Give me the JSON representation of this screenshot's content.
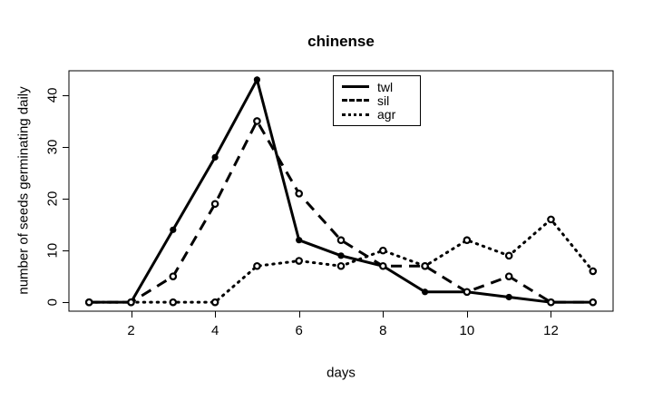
{
  "title": "chinense",
  "colors": {
    "foreground": "#000000",
    "background": "#ffffff"
  },
  "chart_data": {
    "type": "line",
    "title": "chinense",
    "xlabel": "days",
    "ylabel": "number of seeds germinating daily",
    "x": [
      1,
      2,
      3,
      4,
      5,
      6,
      7,
      8,
      9,
      10,
      11,
      12,
      13
    ],
    "xticks": [
      2,
      4,
      6,
      8,
      10,
      12
    ],
    "yticks": [
      0,
      10,
      20,
      30,
      40
    ],
    "xlim": [
      0.52,
      13.48
    ],
    "ylim": [
      -1.72,
      44.72
    ],
    "grid": false,
    "legend_position": "top-center",
    "series": [
      {
        "name": "twl",
        "line_style": "solid",
        "marker": "filled",
        "values": [
          0,
          0,
          14,
          28,
          43,
          12,
          9,
          7,
          2,
          2,
          1,
          0,
          0
        ]
      },
      {
        "name": "sil",
        "line_style": "dashed",
        "marker": "open",
        "values": [
          0,
          0,
          5,
          19,
          35,
          21,
          12,
          7,
          7,
          2,
          5,
          0,
          0
        ]
      },
      {
        "name": "agr",
        "line_style": "dotted",
        "marker": "open",
        "values": [
          0,
          0,
          0,
          0,
          7,
          8,
          7,
          10,
          7,
          12,
          9,
          16,
          6
        ]
      }
    ]
  }
}
